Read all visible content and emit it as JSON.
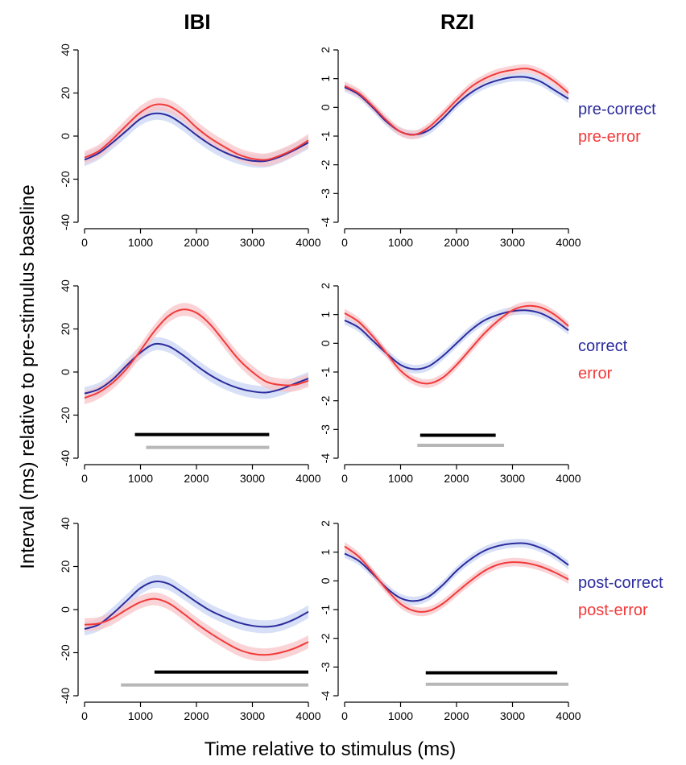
{
  "figure": {
    "col_titles": [
      "IBI",
      "RZI"
    ],
    "ylabel": "Interval (ms) relative to pre-stimulus baseline",
    "xlabel": "Time relative to stimulus (ms)"
  },
  "colors": {
    "series1": "#2b2b9e",
    "series1_band": "#c9d6f3",
    "series2": "#f23a3a",
    "series2_band": "#f8c4c8",
    "sig_black": "#000000",
    "sig_gray": "#b7b7b7"
  },
  "chart_data": [
    {
      "id": "row1-ibi",
      "type": "line",
      "row": 0,
      "col": 0,
      "title": "",
      "xlabel": "",
      "ylabel": "",
      "xlim": [
        0,
        4000
      ],
      "ylim": [
        -40,
        40
      ],
      "xticks": [
        0,
        1000,
        2000,
        3000,
        4000
      ],
      "yticks": [
        -40,
        -20,
        0,
        20,
        40
      ],
      "grid": false,
      "band_halfwidth": 3,
      "x": [
        0,
        250,
        500,
        750,
        1000,
        1250,
        1500,
        1750,
        2000,
        2250,
        2500,
        2750,
        3000,
        3250,
        3500,
        3750,
        4000
      ],
      "series": [
        {
          "name": "pre-correct",
          "color_key": "series1",
          "values": [
            -11,
            -8,
            -3,
            2.5,
            8,
            10.5,
            9.5,
            5.5,
            0.5,
            -4,
            -7.5,
            -10,
            -11.5,
            -11.5,
            -9.5,
            -6.5,
            -3
          ]
        },
        {
          "name": "pre-error",
          "color_key": "series2",
          "values": [
            -10,
            -7,
            -1.5,
            5,
            11,
            14.5,
            14,
            10,
            4,
            -1,
            -5,
            -8.5,
            -10.5,
            -11,
            -9,
            -6,
            -2
          ]
        }
      ],
      "sig_bars": []
    },
    {
      "id": "row1-rzi",
      "type": "line",
      "row": 0,
      "col": 1,
      "title": "",
      "xlabel": "",
      "ylabel": "",
      "xlim": [
        0,
        4000
      ],
      "ylim": [
        -4,
        2
      ],
      "xticks": [
        0,
        1000,
        2000,
        3000,
        4000
      ],
      "yticks": [
        -4,
        -3,
        -2,
        -1,
        0,
        1,
        2
      ],
      "grid": false,
      "band_halfwidth": 0.15,
      "x": [
        0,
        250,
        500,
        750,
        1000,
        1250,
        1500,
        1750,
        2000,
        2250,
        2500,
        2750,
        3000,
        3250,
        3500,
        3750,
        4000
      ],
      "series": [
        {
          "name": "pre-correct",
          "color_key": "series1",
          "values": [
            0.7,
            0.45,
            0.0,
            -0.5,
            -0.85,
            -0.95,
            -0.8,
            -0.4,
            0.1,
            0.5,
            0.78,
            0.95,
            1.05,
            1.05,
            0.9,
            0.6,
            0.3
          ]
        },
        {
          "name": "pre-error",
          "color_key": "series2",
          "values": [
            0.75,
            0.5,
            0.05,
            -0.45,
            -0.85,
            -0.95,
            -0.7,
            -0.25,
            0.25,
            0.7,
            1.0,
            1.2,
            1.3,
            1.35,
            1.2,
            0.9,
            0.5
          ]
        }
      ],
      "sig_bars": []
    },
    {
      "id": "row2-ibi",
      "type": "line",
      "row": 1,
      "col": 0,
      "title": "",
      "xlabel": "",
      "ylabel": "",
      "xlim": [
        0,
        4000
      ],
      "ylim": [
        -40,
        40
      ],
      "xticks": [
        0,
        1000,
        2000,
        3000,
        4000
      ],
      "yticks": [
        -40,
        -20,
        0,
        20,
        40
      ],
      "grid": false,
      "band_halfwidth": 3,
      "x": [
        0,
        250,
        500,
        750,
        1000,
        1250,
        1500,
        1750,
        2000,
        2250,
        2500,
        2750,
        3000,
        3250,
        3500,
        3750,
        4000
      ],
      "series": [
        {
          "name": "correct",
          "color_key": "series1",
          "values": [
            -10,
            -8,
            -3.5,
            3,
            9,
            13,
            12,
            8,
            3,
            -1.5,
            -5,
            -7.5,
            -9,
            -9.5,
            -8,
            -5.5,
            -3
          ]
        },
        {
          "name": "error",
          "color_key": "series2",
          "values": [
            -12,
            -9.5,
            -5,
            1.5,
            10,
            19,
            26,
            29,
            27.5,
            22,
            14,
            6,
            0,
            -4.5,
            -6,
            -6,
            -4
          ]
        }
      ],
      "sig_bars": [
        {
          "x0": 900,
          "x1": 3300,
          "y": -29,
          "color_key": "sig_black"
        },
        {
          "x0": 1100,
          "x1": 3300,
          "y": -35,
          "color_key": "sig_gray"
        }
      ]
    },
    {
      "id": "row2-rzi",
      "type": "line",
      "row": 1,
      "col": 1,
      "title": "",
      "xlabel": "",
      "ylabel": "",
      "xlim": [
        0,
        4000
      ],
      "ylim": [
        -4,
        2
      ],
      "xticks": [
        0,
        1000,
        2000,
        3000,
        4000
      ],
      "yticks": [
        -4,
        -3,
        -2,
        -1,
        0,
        1,
        2
      ],
      "grid": false,
      "band_halfwidth": 0.15,
      "x": [
        0,
        250,
        500,
        750,
        1000,
        1250,
        1500,
        1750,
        2000,
        2250,
        2500,
        2750,
        3000,
        3250,
        3500,
        3750,
        4000
      ],
      "series": [
        {
          "name": "correct",
          "color_key": "series1",
          "values": [
            0.8,
            0.55,
            0.1,
            -0.35,
            -0.75,
            -0.9,
            -0.8,
            -0.45,
            0.0,
            0.45,
            0.8,
            1.0,
            1.12,
            1.15,
            1.05,
            0.8,
            0.45
          ]
        },
        {
          "name": "error",
          "color_key": "series2",
          "values": [
            1.05,
            0.75,
            0.25,
            -0.35,
            -0.95,
            -1.3,
            -1.4,
            -1.2,
            -0.75,
            -0.2,
            0.35,
            0.8,
            1.15,
            1.3,
            1.25,
            1.0,
            0.6
          ]
        }
      ],
      "sig_bars": [
        {
          "x0": 1350,
          "x1": 2700,
          "y": -3.2,
          "color_key": "sig_black"
        },
        {
          "x0": 1300,
          "x1": 2850,
          "y": -3.55,
          "color_key": "sig_gray"
        }
      ]
    },
    {
      "id": "row3-ibi",
      "type": "line",
      "row": 2,
      "col": 0,
      "title": "",
      "xlabel": "",
      "ylabel": "",
      "xlim": [
        0,
        4000
      ],
      "ylim": [
        -40,
        40
      ],
      "xticks": [
        0,
        1000,
        2000,
        3000,
        4000
      ],
      "yticks": [
        -40,
        -20,
        0,
        20,
        40
      ],
      "grid": false,
      "band_halfwidth": 3,
      "x": [
        0,
        250,
        500,
        750,
        1000,
        1250,
        1500,
        1750,
        2000,
        2250,
        2500,
        2750,
        3000,
        3250,
        3500,
        3750,
        4000
      ],
      "series": [
        {
          "name": "post-correct",
          "color_key": "series1",
          "values": [
            -9,
            -7,
            -2,
            4,
            10,
            13,
            12,
            8,
            3.5,
            -0.5,
            -3.5,
            -6,
            -7.5,
            -8,
            -7,
            -4.5,
            -1
          ]
        },
        {
          "name": "post-error",
          "color_key": "series2",
          "values": [
            -7,
            -6.5,
            -4,
            0,
            3.5,
            5,
            3,
            -1.5,
            -6.5,
            -11,
            -15,
            -18.5,
            -20.5,
            -21,
            -20,
            -18,
            -15
          ]
        }
      ],
      "sig_bars": [
        {
          "x0": 1250,
          "x1": 4000,
          "y": -29,
          "color_key": "sig_black"
        },
        {
          "x0": 650,
          "x1": 4000,
          "y": -35,
          "color_key": "sig_gray"
        }
      ]
    },
    {
      "id": "row3-rzi",
      "type": "line",
      "row": 2,
      "col": 1,
      "title": "",
      "xlabel": "",
      "ylabel": "",
      "xlim": [
        0,
        4000
      ],
      "ylim": [
        -4,
        2
      ],
      "xticks": [
        0,
        1000,
        2000,
        3000,
        4000
      ],
      "yticks": [
        -4,
        -3,
        -2,
        -1,
        0,
        1,
        2
      ],
      "grid": false,
      "band_halfwidth": 0.15,
      "x": [
        0,
        250,
        500,
        750,
        1000,
        1250,
        1500,
        1750,
        2000,
        2250,
        2500,
        2750,
        3000,
        3250,
        3500,
        3750,
        4000
      ],
      "series": [
        {
          "name": "post-correct",
          "color_key": "series1",
          "values": [
            0.95,
            0.7,
            0.25,
            -0.25,
            -0.6,
            -0.7,
            -0.55,
            -0.15,
            0.35,
            0.75,
            1.05,
            1.22,
            1.3,
            1.3,
            1.15,
            0.9,
            0.55
          ]
        },
        {
          "name": "post-error",
          "color_key": "series2",
          "values": [
            1.2,
            0.85,
            0.3,
            -0.3,
            -0.8,
            -1.05,
            -1.05,
            -0.8,
            -0.4,
            0.0,
            0.35,
            0.57,
            0.65,
            0.62,
            0.5,
            0.3,
            0.05
          ]
        }
      ],
      "sig_bars": [
        {
          "x0": 1450,
          "x1": 3800,
          "y": -3.2,
          "color_key": "sig_black"
        },
        {
          "x0": 1450,
          "x1": 4000,
          "y": -3.6,
          "color_key": "sig_gray"
        }
      ]
    }
  ],
  "legends": [
    {
      "row": 0,
      "items": [
        "pre-correct",
        "pre-error"
      ]
    },
    {
      "row": 1,
      "items": [
        "correct",
        "error"
      ]
    },
    {
      "row": 2,
      "items": [
        "post-correct",
        "post-error"
      ]
    }
  ]
}
